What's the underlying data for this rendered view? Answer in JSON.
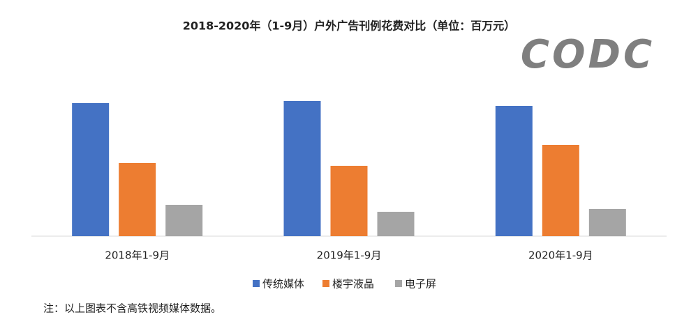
{
  "chart_data": {
    "type": "bar",
    "title": "2018-2020年（1-9月）户外广告刊例花费对比（单位：百万元）",
    "watermark": "CODC",
    "note": "注：以上图表不含高铁视频媒体数据。",
    "categories": [
      "2018年1-9月",
      "2019年1-9月",
      "2020年1-9月"
    ],
    "series": [
      {
        "name": "传统媒体",
        "color": "#4472c4",
        "values": [
          191,
          194,
          187
        ]
      },
      {
        "name": "楼宇液晶",
        "color": "#ed7d31",
        "values": [
          105,
          101,
          131
        ]
      },
      {
        "name": "电子屏",
        "color": "#a5a5a5",
        "values": [
          45,
          35,
          39
        ]
      }
    ],
    "legend": "bottom"
  }
}
